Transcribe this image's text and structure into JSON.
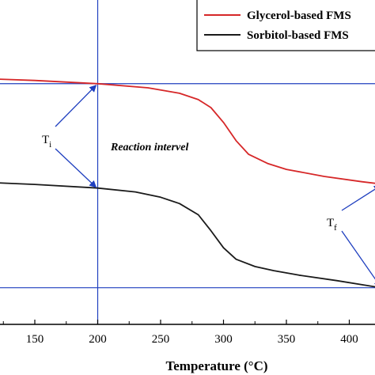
{
  "chart_data": {
    "type": "line",
    "title": "",
    "xlabel": "Temperature (°C)",
    "ylabel": "",
    "xlim": [
      120,
      425
    ],
    "ylim": [
      0,
      100
    ],
    "xticks": [
      150,
      200,
      250,
      300,
      350,
      400
    ],
    "grid": false,
    "legend_position": "top-right",
    "series": [
      {
        "name": "Glycerol-based FMS",
        "color": "#d62728",
        "x": [
          120,
          150,
          200,
          240,
          265,
          280,
          290,
          300,
          310,
          320,
          335,
          350,
          380,
          410,
          425
        ],
        "y": [
          93,
          92.4,
          91,
          89.2,
          86.8,
          84,
          80.5,
          74,
          66,
          60,
          56,
          53.4,
          50.3,
          48,
          47
        ]
      },
      {
        "name": "Sorbitol-based FMS",
        "color": "#1a1a1a",
        "x": [
          120,
          150,
          200,
          230,
          250,
          265,
          280,
          290,
          300,
          310,
          325,
          340,
          360,
          390,
          425
        ],
        "y": [
          47.5,
          46.8,
          45.2,
          43.5,
          41.2,
          38.4,
          33.5,
          26.5,
          19,
          14,
          10.8,
          9,
          7,
          4.6,
          1.5
        ]
      }
    ],
    "reference_lines": {
      "color": "#1f3fbf",
      "vertical_x": 200,
      "horizontal_y": [
        91,
        1.5
      ]
    },
    "annotations": {
      "ti": {
        "main": "T",
        "sub": "i",
        "target_x": 200
      },
      "tf": {
        "main": "T",
        "sub": "f",
        "target_x": 425
      },
      "region_label": "Reaction intervel"
    }
  }
}
